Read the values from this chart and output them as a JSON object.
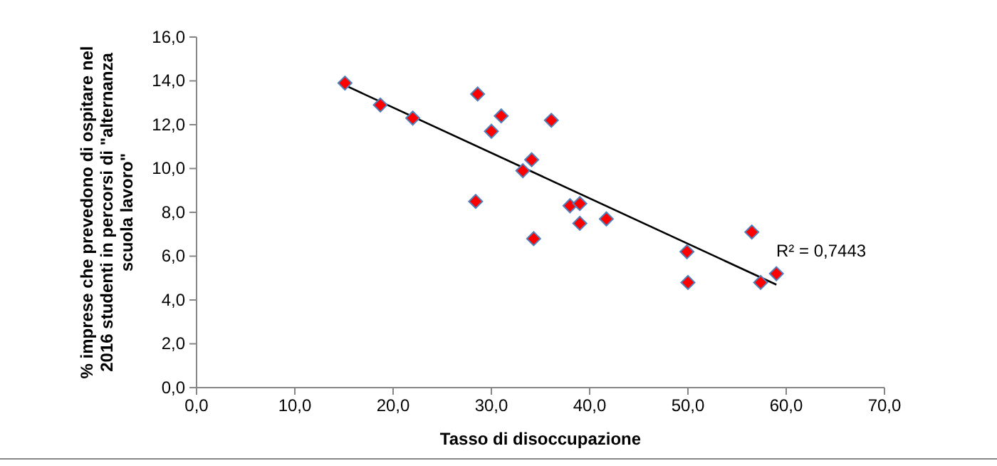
{
  "chart_data": {
    "type": "scatter",
    "xlabel": "Tasso di disoccupazione",
    "ylabel": "% imprese che prevedono di ospitare nel 2016 studenti in percorsi di \"alternanza scuola lavoro\"",
    "xlim": [
      0,
      70
    ],
    "ylim": [
      0,
      16
    ],
    "xticks": [
      {
        "value": 0,
        "label": "0,0"
      },
      {
        "value": 10,
        "label": "10,0"
      },
      {
        "value": 20,
        "label": "20,0"
      },
      {
        "value": 30,
        "label": "30,0"
      },
      {
        "value": 40,
        "label": "40,0"
      },
      {
        "value": 50,
        "label": "50,0"
      },
      {
        "value": 60,
        "label": "60,0"
      },
      {
        "value": 70,
        "label": "70,0"
      }
    ],
    "yticks": [
      {
        "value": 0,
        "label": "0,0"
      },
      {
        "value": 2,
        "label": "2,0"
      },
      {
        "value": 4,
        "label": "4,0"
      },
      {
        "value": 6,
        "label": "6,0"
      },
      {
        "value": 8,
        "label": "8,0"
      },
      {
        "value": 10,
        "label": "10,0"
      },
      {
        "value": 12,
        "label": "12,0"
      },
      {
        "value": 14,
        "label": "14,0"
      },
      {
        "value": 16,
        "label": "16,0"
      }
    ],
    "grid": false,
    "series": [
      {
        "marker": "diamond",
        "color": "#ff0000",
        "x": [
          15.1,
          18.7,
          22.0,
          28.6,
          31.0,
          30.0,
          36.1,
          34.1,
          33.2,
          28.4,
          38.0,
          39.0,
          39.0,
          41.7,
          34.3,
          49.9,
          50.0,
          56.5,
          57.4,
          59.0
        ],
        "values": [
          13.9,
          12.9,
          12.3,
          13.4,
          12.4,
          11.7,
          12.2,
          10.4,
          9.9,
          8.5,
          8.3,
          8.4,
          7.5,
          7.7,
          6.8,
          6.2,
          4.8,
          7.1,
          4.8,
          5.2
        ]
      },
      {
        "type": "line",
        "color": "#000000",
        "line_style": "solid",
        "x": [
          15.1,
          59.0
        ],
        "values": [
          13.8,
          4.7
        ]
      }
    ],
    "annotations": [
      "R² = 0,7443"
    ]
  }
}
